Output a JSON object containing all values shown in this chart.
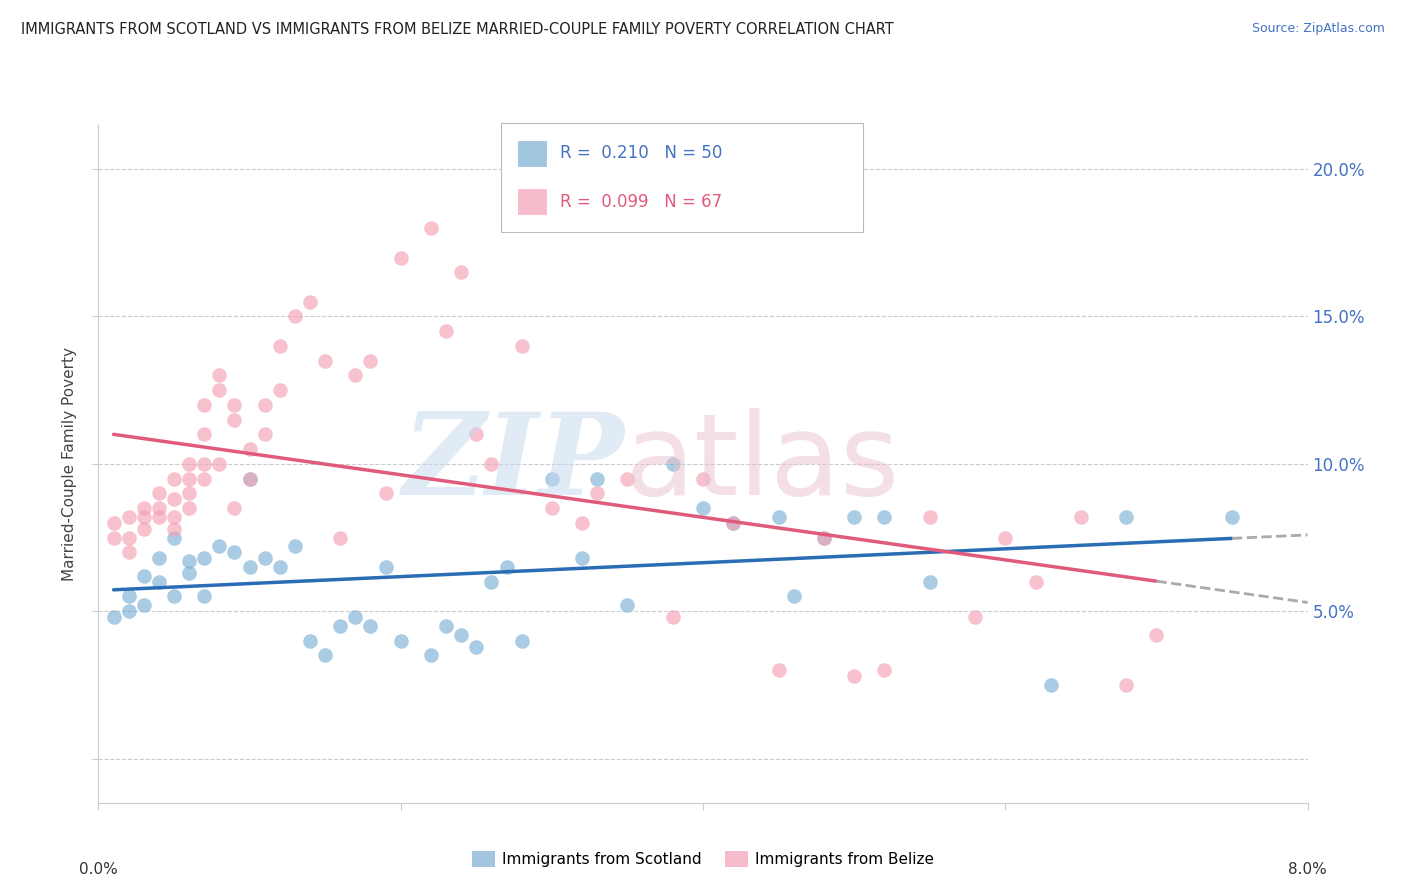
{
  "title": "IMMIGRANTS FROM SCOTLAND VS IMMIGRANTS FROM BELIZE MARRIED-COUPLE FAMILY POVERTY CORRELATION CHART",
  "source": "Source: ZipAtlas.com",
  "ylabel": "Married-Couple Family Poverty",
  "xlim": [
    0.0,
    0.08
  ],
  "ylim": [
    -0.015,
    0.215
  ],
  "ytick_positions": [
    0.0,
    0.05,
    0.1,
    0.15,
    0.2
  ],
  "ytick_labels": [
    "",
    "5.0%",
    "10.0%",
    "15.0%",
    "20.0%"
  ],
  "xtick_positions": [
    0.0,
    0.02,
    0.04,
    0.06,
    0.08
  ],
  "scotland_r": "0.210",
  "scotland_n": "50",
  "belize_r": "0.099",
  "belize_n": "67",
  "scotland_scatter_color": "#7bafd4",
  "belize_scatter_color": "#f4a0b5",
  "scotland_line_color": "#2b6db5",
  "belize_line_color": "#e05a7a",
  "marker_size": 110,
  "marker_alpha": 0.65,
  "scotland_x": [
    0.001,
    0.002,
    0.002,
    0.003,
    0.003,
    0.004,
    0.004,
    0.005,
    0.005,
    0.006,
    0.006,
    0.007,
    0.007,
    0.008,
    0.009,
    0.01,
    0.01,
    0.011,
    0.012,
    0.013,
    0.014,
    0.015,
    0.016,
    0.017,
    0.018,
    0.019,
    0.02,
    0.022,
    0.023,
    0.024,
    0.025,
    0.026,
    0.027,
    0.028,
    0.03,
    0.032,
    0.033,
    0.035,
    0.038,
    0.04,
    0.042,
    0.045,
    0.046,
    0.048,
    0.05,
    0.052,
    0.055,
    0.063,
    0.068,
    0.075
  ],
  "scotland_y": [
    0.048,
    0.05,
    0.055,
    0.052,
    0.062,
    0.06,
    0.068,
    0.055,
    0.075,
    0.063,
    0.067,
    0.068,
    0.055,
    0.072,
    0.07,
    0.095,
    0.065,
    0.068,
    0.065,
    0.072,
    0.04,
    0.035,
    0.045,
    0.048,
    0.045,
    0.065,
    0.04,
    0.035,
    0.045,
    0.042,
    0.038,
    0.06,
    0.065,
    0.04,
    0.095,
    0.068,
    0.095,
    0.052,
    0.1,
    0.085,
    0.08,
    0.082,
    0.055,
    0.075,
    0.082,
    0.082,
    0.06,
    0.025,
    0.082,
    0.082
  ],
  "belize_x": [
    0.001,
    0.001,
    0.002,
    0.002,
    0.002,
    0.003,
    0.003,
    0.003,
    0.004,
    0.004,
    0.004,
    0.005,
    0.005,
    0.005,
    0.005,
    0.006,
    0.006,
    0.006,
    0.006,
    0.007,
    0.007,
    0.007,
    0.007,
    0.008,
    0.008,
    0.008,
    0.009,
    0.009,
    0.009,
    0.01,
    0.01,
    0.011,
    0.011,
    0.012,
    0.012,
    0.013,
    0.014,
    0.015,
    0.016,
    0.017,
    0.018,
    0.019,
    0.02,
    0.022,
    0.023,
    0.024,
    0.025,
    0.026,
    0.028,
    0.03,
    0.032,
    0.033,
    0.035,
    0.038,
    0.04,
    0.042,
    0.045,
    0.048,
    0.05,
    0.052,
    0.055,
    0.058,
    0.06,
    0.062,
    0.065,
    0.068,
    0.07
  ],
  "belize_y": [
    0.08,
    0.075,
    0.082,
    0.075,
    0.07,
    0.082,
    0.085,
    0.078,
    0.09,
    0.085,
    0.082,
    0.088,
    0.082,
    0.095,
    0.078,
    0.1,
    0.095,
    0.09,
    0.085,
    0.12,
    0.11,
    0.1,
    0.095,
    0.13,
    0.125,
    0.1,
    0.12,
    0.115,
    0.085,
    0.105,
    0.095,
    0.12,
    0.11,
    0.14,
    0.125,
    0.15,
    0.155,
    0.135,
    0.075,
    0.13,
    0.135,
    0.09,
    0.17,
    0.18,
    0.145,
    0.165,
    0.11,
    0.1,
    0.14,
    0.085,
    0.08,
    0.09,
    0.095,
    0.048,
    0.095,
    0.08,
    0.03,
    0.075,
    0.028,
    0.03,
    0.082,
    0.048,
    0.075,
    0.06,
    0.082,
    0.025,
    0.042
  ]
}
